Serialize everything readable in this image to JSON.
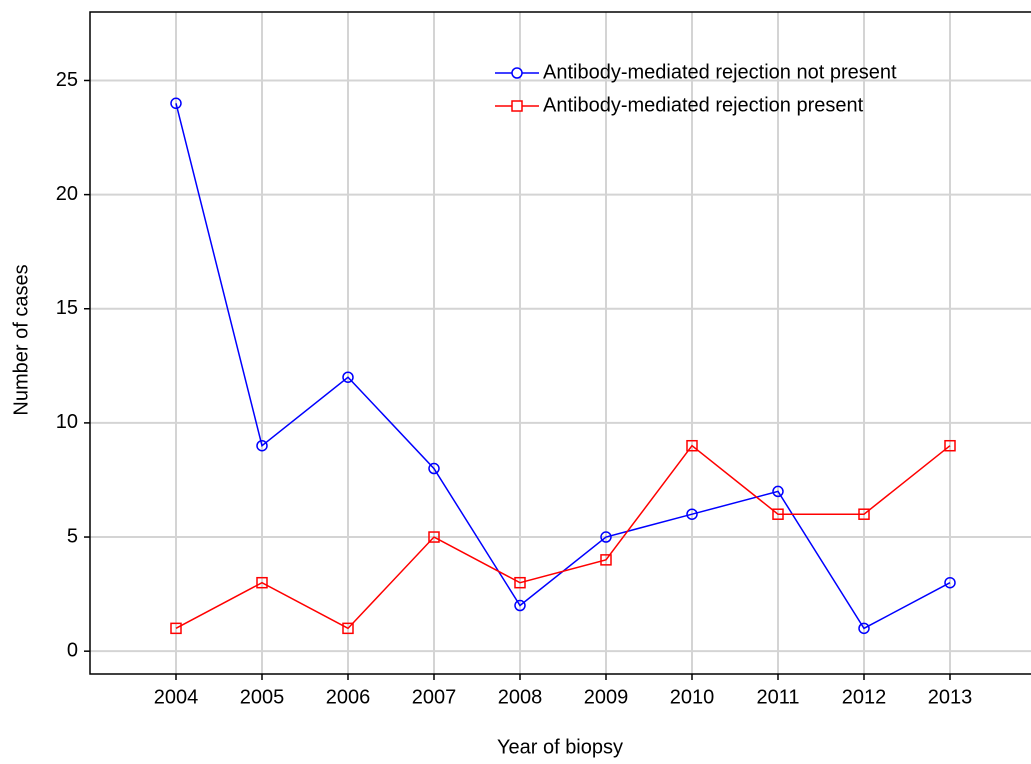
{
  "chart_data": {
    "type": "line",
    "x_label": "Year of biopsy",
    "y_label": "Number of cases",
    "x": [
      2004,
      2005,
      2006,
      2007,
      2008,
      2009,
      2010,
      2011,
      2012,
      2013
    ],
    "xlim": [
      2003,
      2014
    ],
    "xticks": [
      2004,
      2005,
      2006,
      2007,
      2008,
      2009,
      2010,
      2011,
      2012,
      2013
    ],
    "ylim": [
      -1,
      28
    ],
    "yticks": [
      0,
      5,
      10,
      15,
      20,
      25
    ],
    "grid": true,
    "legend": "upper right",
    "series": [
      {
        "name": "Antibody-mediated rejection not present",
        "color": "#0000ff",
        "marker": "circle",
        "values": [
          24,
          9,
          12,
          8,
          2,
          5,
          6,
          7,
          1,
          3
        ]
      },
      {
        "name": "Antibody-mediated rejection present",
        "color": "#ff0000",
        "marker": "square",
        "values": [
          1,
          3,
          1,
          5,
          3,
          4,
          9,
          6,
          6,
          9
        ]
      }
    ]
  }
}
